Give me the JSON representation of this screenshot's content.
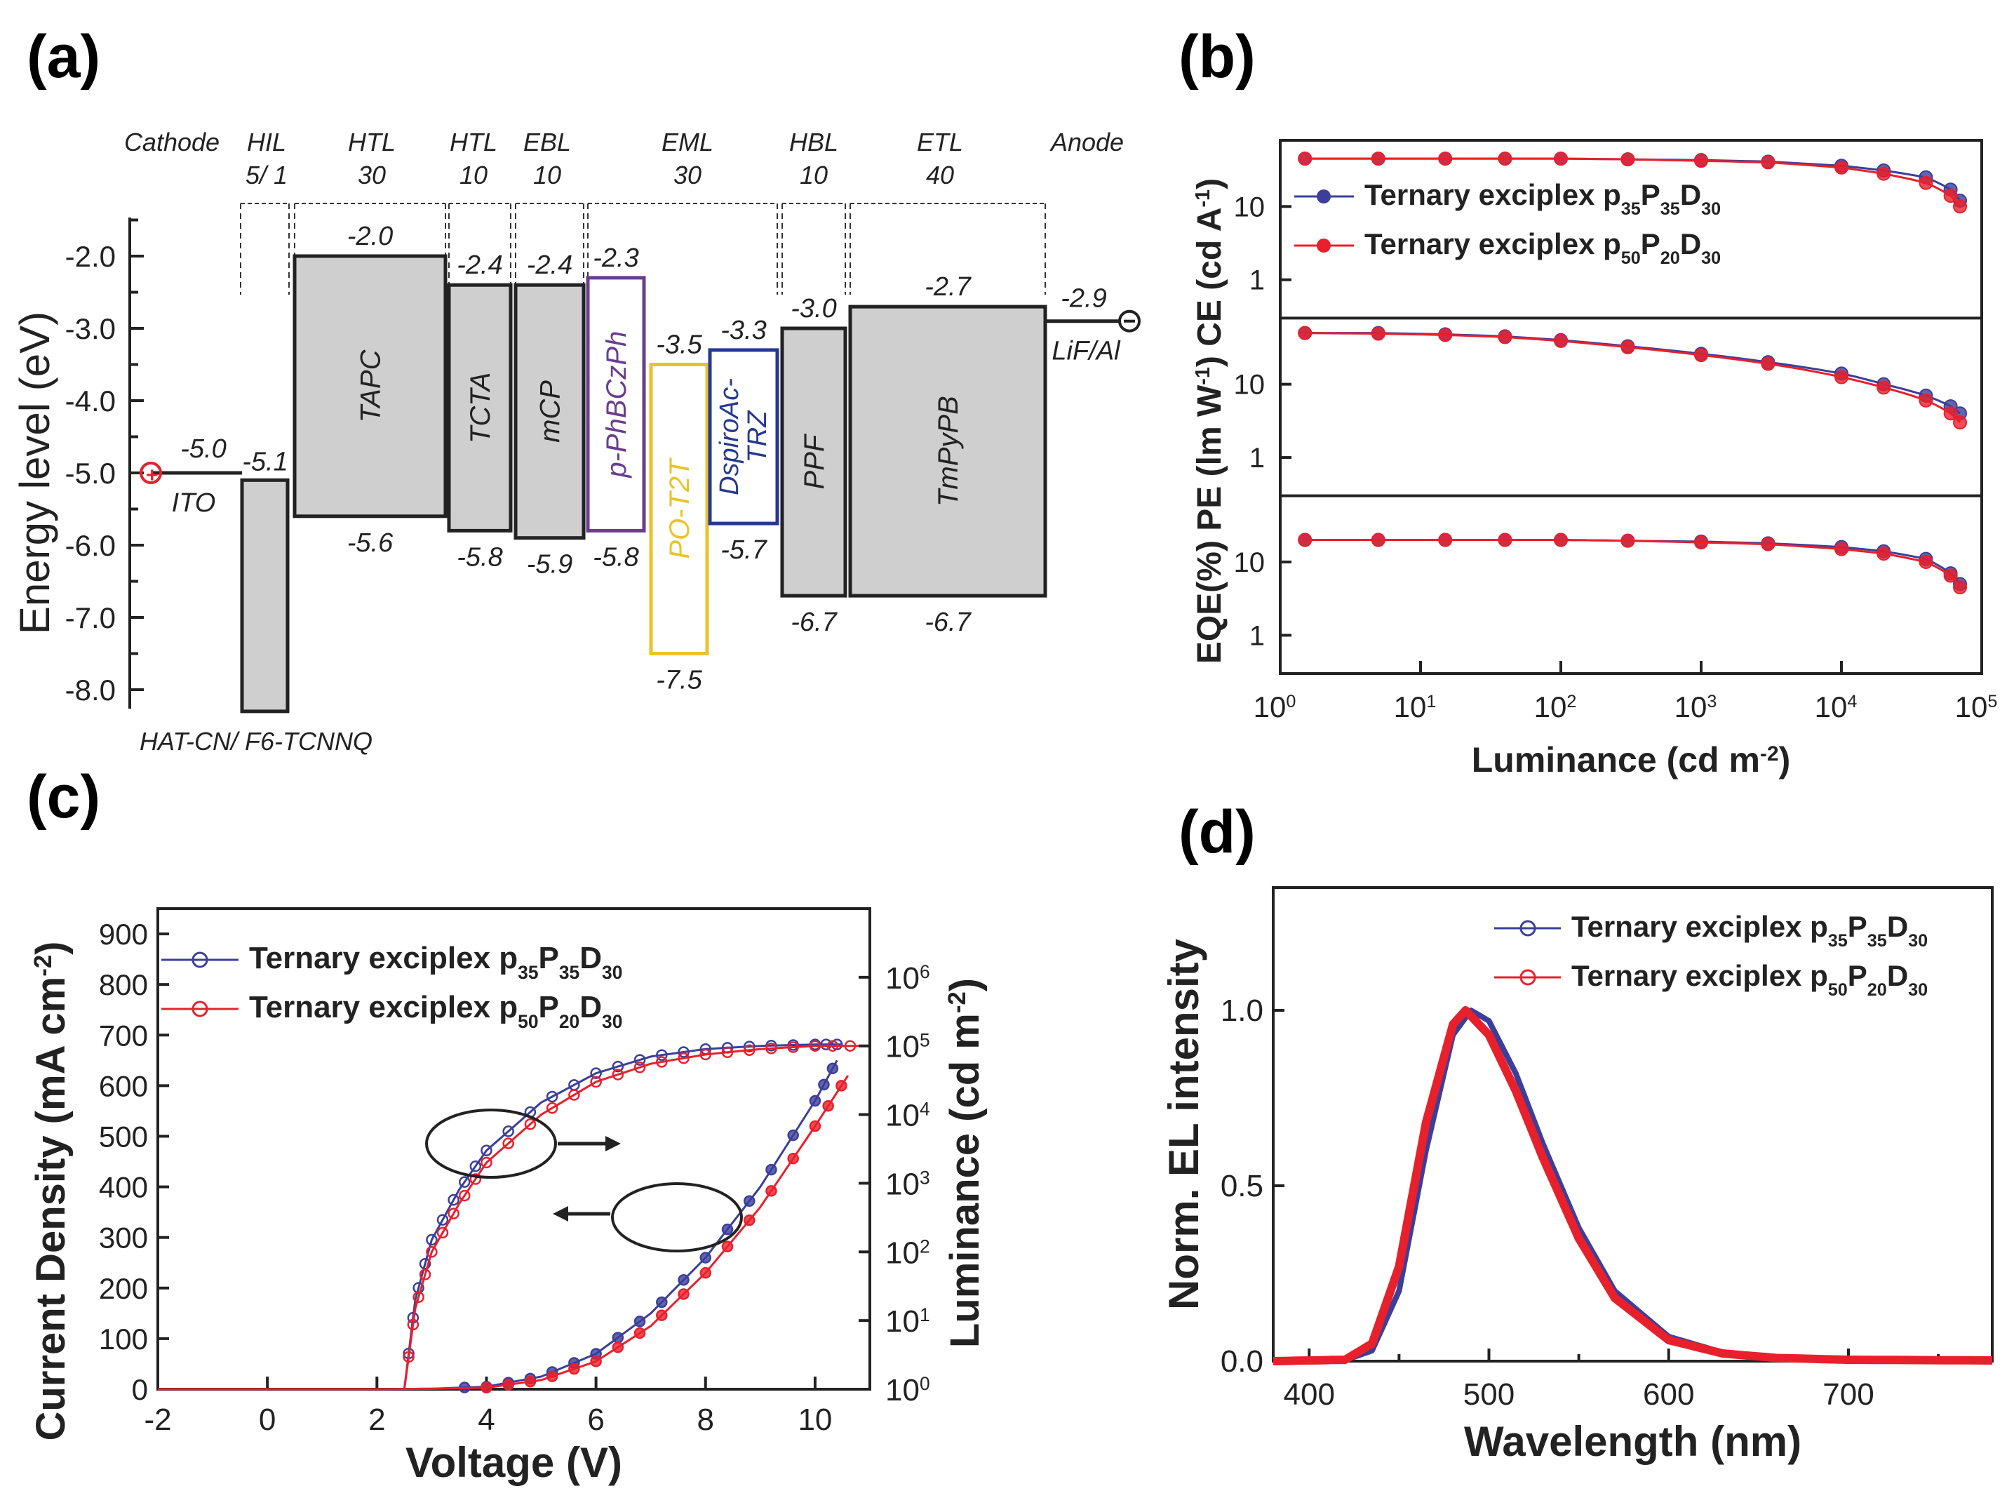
{
  "panels": {
    "a": "(a)",
    "b": "(b)",
    "c": "(c)",
    "d": "(d)"
  },
  "colors": {
    "blue": "#3b3f9a",
    "red": "#e8202c",
    "purple": "#6a3d8f",
    "yellow": "#e8c42a",
    "navy": "#253a8f",
    "box_fill": "#cfcfcf"
  },
  "chart_data": [
    {
      "id": "a",
      "type": "diagram",
      "title": "Energy level diagram",
      "ylabel": "Energy level (eV)",
      "ylim": [
        -8.5,
        -1.5
      ],
      "yticks": [
        "-2.0",
        "-3.0",
        "-4.0",
        "-5.0",
        "-6.0",
        "-7.0",
        "-8.0"
      ],
      "layers": [
        {
          "name": "Cathode",
          "thick": ""
        },
        {
          "name": "HIL",
          "thick": "5/ 1"
        },
        {
          "name": "HTL",
          "thick": "30"
        },
        {
          "name": "HTL",
          "thick": "10"
        },
        {
          "name": "EBL",
          "thick": "10"
        },
        {
          "name": "EML",
          "thick": "30"
        },
        {
          "name": "HBL",
          "thick": "10"
        },
        {
          "name": "ETL",
          "thick": "40"
        },
        {
          "name": "Anode",
          "thick": ""
        }
      ],
      "materials": [
        {
          "name": "TAPC",
          "lumo": -2.0,
          "homo": -5.6,
          "lumo_label": "-2.0",
          "homo_label": "-5.6"
        },
        {
          "name": "TCTA",
          "lumo": -2.4,
          "homo": -5.8,
          "lumo_label": "-2.4",
          "homo_label": "-5.8"
        },
        {
          "name": "mCP",
          "lumo": -2.4,
          "homo": -5.9,
          "lumo_label": "-2.4",
          "homo_label": "-5.9"
        },
        {
          "name": "p-PhBCzPh",
          "lumo": -2.3,
          "homo": -5.8,
          "lumo_label": "-2.3",
          "homo_label": "-5.8"
        },
        {
          "name": "PO-T2T",
          "lumo": -3.5,
          "homo": -7.5,
          "lumo_label": "-3.5",
          "homo_label": "-7.5"
        },
        {
          "name": "DspiroAc-",
          "name2": "TRZ",
          "lumo": -3.3,
          "homo": -5.7,
          "lumo_label": "-3.3",
          "homo_label": "-5.7"
        },
        {
          "name": "PPF",
          "lumo": -3.0,
          "homo": -6.7,
          "lumo_label": "-3.0",
          "homo_label": "-6.7"
        },
        {
          "name": "TmPyPB",
          "lumo": -2.7,
          "homo": -6.7,
          "lumo_label": "-2.7",
          "homo_label": "-6.7"
        }
      ],
      "hil": {
        "name": "HAT-CN/ F6-TCNNQ",
        "lumo_label": "-5.1",
        "homo": -8.3
      },
      "ito": {
        "name": "ITO",
        "level": -5.0,
        "label": "-5.0"
      },
      "lif": {
        "name": "LiF/Al",
        "level": -2.9,
        "label": "-2.9"
      }
    },
    {
      "id": "b",
      "type": "scatter",
      "xlabel": "Luminance (cd m",
      "xlabel_sup": "-2",
      "xlabel_end": ")",
      "xscale": "log",
      "xlim": [
        1,
        100000
      ],
      "xtick_exps": [
        "0",
        "1",
        "2",
        "3",
        "4",
        "5"
      ],
      "ylabel": "EQE(%) PE (lm W⁻¹) CE (cd A⁻¹)",
      "ylabel_top": "CE (cd A",
      "ylabel_top_sup": "-1",
      "ylabel_top_end": ")",
      "ylabel_mid": "PE (lm W",
      "ylabel_mid_sup": "-1",
      "ylabel_mid_end": ")",
      "ylabel_bot": "EQE(%)",
      "subplot_yticks": [
        "1",
        "10"
      ],
      "legend": [
        {
          "text": "Ternary exciplex p",
          "s1": "35",
          "m": "P",
          "s2": "35",
          "n": "D",
          "s3": "30"
        },
        {
          "text": "Ternary exciplex p",
          "s1": "50",
          "m": "P",
          "s2": "20",
          "n": "D",
          "s3": "30"
        }
      ],
      "series": [
        {
          "name": "p35P35D30 CE",
          "x": [
            1.5,
            5,
            15,
            40,
            100,
            300,
            1000,
            3000,
            10000,
            20000,
            40000,
            60000,
            70000
          ],
          "y": [
            45,
            45,
            45,
            45,
            45,
            44,
            43,
            41,
            36,
            31,
            25,
            17,
            12
          ]
        },
        {
          "name": "p50P20D30 CE",
          "x": [
            1.5,
            5,
            15,
            40,
            100,
            300,
            1000,
            3000,
            10000,
            20000,
            40000,
            60000,
            70000
          ],
          "y": [
            45,
            45,
            45,
            45,
            45,
            44,
            42,
            40,
            34,
            28,
            21,
            14,
            10
          ]
        },
        {
          "name": "p35P35D30 PE",
          "x": [
            1.5,
            5,
            15,
            40,
            100,
            300,
            1000,
            3000,
            10000,
            20000,
            40000,
            60000,
            70000
          ],
          "y": [
            50,
            50,
            48,
            45,
            40,
            33,
            26,
            20,
            14,
            10,
            7,
            5,
            4
          ]
        },
        {
          "name": "p50P20D30 PE",
          "x": [
            1.5,
            5,
            15,
            40,
            100,
            300,
            1000,
            3000,
            10000,
            20000,
            40000,
            60000,
            70000
          ],
          "y": [
            50,
            49,
            47,
            44,
            39,
            32,
            25,
            19,
            12.5,
            9,
            6,
            4,
            3
          ]
        },
        {
          "name": "p35P35D30 EQE",
          "x": [
            1.5,
            5,
            15,
            40,
            100,
            300,
            1000,
            3000,
            10000,
            20000,
            40000,
            60000,
            70000
          ],
          "y": [
            20,
            20,
            20,
            20,
            20,
            19.5,
            19,
            18,
            16,
            14,
            11,
            7,
            5
          ]
        },
        {
          "name": "p50P20D30 EQE",
          "x": [
            1.5,
            5,
            15,
            40,
            100,
            300,
            1000,
            3000,
            10000,
            20000,
            40000,
            60000,
            70000
          ],
          "y": [
            20,
            20,
            20,
            20,
            20,
            19.5,
            18.5,
            17.5,
            15,
            13,
            10,
            6.5,
            4.5
          ]
        }
      ]
    },
    {
      "id": "c",
      "type": "line",
      "xlabel": "Voltage (V)",
      "xlim": [
        -2,
        11
      ],
      "xticks": [
        "-2",
        "0",
        "2",
        "4",
        "6",
        "8",
        "10"
      ],
      "ylabel": "Current Density (mA cm",
      "ylabel_sup": "-2",
      "ylabel_end": ")",
      "ylim": [
        0,
        950
      ],
      "yticks": [
        "0",
        "100",
        "200",
        "300",
        "400",
        "500",
        "600",
        "700",
        "800",
        "900"
      ],
      "y2label": "Luminance (cd m",
      "y2label_sup": "-2",
      "y2label_end": ")",
      "y2scale": "log",
      "y2_exps": [
        "0",
        "1",
        "2",
        "3",
        "4",
        "5",
        "6"
      ],
      "legend": [
        {
          "text": "Ternary exciplex p",
          "s1": "35",
          "m": "P",
          "s2": "35",
          "n": "D",
          "s3": "30"
        },
        {
          "text": "Ternary exciplex p",
          "s1": "50",
          "m": "P",
          "s2": "20",
          "n": "D",
          "s3": "30"
        }
      ],
      "series": [
        {
          "name": "p35P35D30 J",
          "x": [
            -2,
            0,
            2,
            3,
            4,
            5,
            6,
            7,
            8,
            9,
            10,
            10.4
          ],
          "y": [
            0,
            0,
            0,
            1,
            5,
            25,
            70,
            150,
            260,
            400,
            570,
            650
          ]
        },
        {
          "name": "p50P20D30 J",
          "x": [
            -2,
            0,
            2,
            3,
            4,
            5,
            6,
            7,
            8,
            9,
            10,
            10.6
          ],
          "y": [
            0,
            0,
            0,
            1,
            3,
            18,
            55,
            125,
            230,
            360,
            520,
            620
          ]
        },
        {
          "name": "p35P35D30 L",
          "x": [
            2.5,
            2.7,
            3,
            3.5,
            4,
            5,
            6,
            7,
            8,
            9,
            10,
            10.5
          ],
          "y": [
            1,
            20,
            150,
            800,
            3000,
            15000,
            40000,
            70000,
            90000,
            100000,
            105000,
            105000
          ]
        },
        {
          "name": "p50P20D30 L",
          "x": [
            2.5,
            2.7,
            3,
            3.5,
            4,
            5,
            6,
            7,
            8,
            9,
            10,
            10.8
          ],
          "y": [
            1,
            15,
            100,
            500,
            2000,
            10000,
            30000,
            55000,
            75000,
            90000,
            100000,
            100000
          ]
        }
      ]
    },
    {
      "id": "d",
      "type": "line",
      "xlabel": "Wavelength (nm)",
      "xlim": [
        380,
        780
      ],
      "xticks": [
        "400",
        "500",
        "600",
        "700"
      ],
      "ylabel": "Norm. EL intensity",
      "ylim": [
        0,
        1.35
      ],
      "yticks": [
        "0.0",
        "0.5",
        "1.0"
      ],
      "legend": [
        {
          "text": "Ternary exciplex  p",
          "s1": "35",
          "m": "P",
          "s2": "35",
          "n": "D",
          "s3": "30"
        },
        {
          "text": "Ternary exciplex  p",
          "s1": "50",
          "m": "P",
          "s2": "20",
          "n": "D",
          "s3": "30"
        }
      ],
      "series": [
        {
          "name": "p35P35D30",
          "x": [
            380,
            420,
            435,
            450,
            465,
            480,
            490,
            500,
            515,
            530,
            550,
            570,
            600,
            630,
            660,
            700,
            780
          ],
          "y": [
            0,
            0.003,
            0.03,
            0.2,
            0.6,
            0.93,
            1.0,
            0.97,
            0.82,
            0.62,
            0.38,
            0.2,
            0.07,
            0.025,
            0.01,
            0.004,
            0.002
          ]
        },
        {
          "name": "p50P20D30",
          "x": [
            380,
            420,
            435,
            450,
            465,
            480,
            487,
            500,
            515,
            530,
            550,
            570,
            600,
            630,
            660,
            700,
            780
          ],
          "y": [
            0,
            0.004,
            0.05,
            0.27,
            0.68,
            0.96,
            1.0,
            0.93,
            0.77,
            0.58,
            0.35,
            0.18,
            0.06,
            0.022,
            0.009,
            0.004,
            0.002
          ]
        }
      ]
    }
  ]
}
